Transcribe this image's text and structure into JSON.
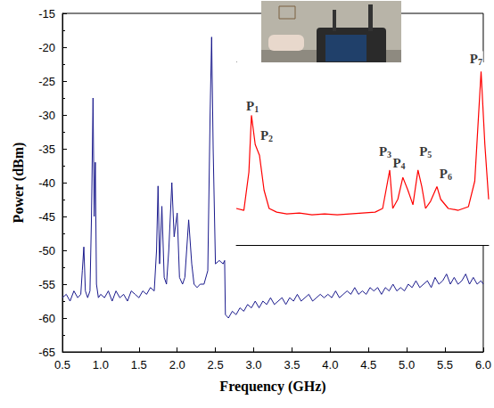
{
  "chart_data": [
    {
      "type": "line",
      "x_label": "Frequency (GHz)",
      "y_label": "Power (dBm)",
      "color": "#1a1a8c",
      "grid": false,
      "xlim": [
        0.5,
        6.0
      ],
      "ylim": [
        -65,
        -15
      ],
      "xticks": [
        0.5,
        {
          "value": 1,
          "label": "1.0"
        },
        1.5,
        {
          "value": 2,
          "label": "2.0"
        },
        2.5,
        {
          "value": 3,
          "label": "3.0"
        },
        3.5,
        {
          "value": 4,
          "label": "4.0"
        },
        4.5,
        {
          "value": 5,
          "label": "5.0"
        },
        5.5,
        {
          "value": 6,
          "label": "6.0"
        }
      ],
      "yticks": [
        -65,
        -60,
        -55,
        -50,
        -45,
        -40,
        -35,
        -30,
        -25,
        -20,
        -15
      ],
      "x": [
        0.5,
        0.55,
        0.6,
        0.65,
        0.7,
        0.74,
        0.76,
        0.78,
        0.8,
        0.83,
        0.86,
        0.88,
        0.9,
        0.915,
        0.93,
        0.945,
        0.97,
        1.0,
        1.05,
        1.1,
        1.15,
        1.2,
        1.25,
        1.3,
        1.35,
        1.4,
        1.45,
        1.5,
        1.55,
        1.6,
        1.65,
        1.7,
        1.73,
        1.75,
        1.77,
        1.8,
        1.83,
        1.86,
        1.89,
        1.93,
        1.96,
        2.0,
        2.03,
        2.07,
        2.1,
        2.15,
        2.19,
        2.22,
        2.26,
        2.3,
        2.35,
        2.4,
        2.43,
        2.45,
        2.47,
        2.5,
        2.55,
        2.6,
        2.62,
        2.63,
        2.67,
        2.72,
        2.77,
        2.82,
        2.87,
        2.92,
        2.97,
        3.02,
        3.07,
        3.12,
        3.17,
        3.22,
        3.27,
        3.32,
        3.37,
        3.42,
        3.47,
        3.52,
        3.57,
        3.62,
        3.67,
        3.72,
        3.77,
        3.82,
        3.87,
        3.92,
        3.97,
        4.02,
        4.07,
        4.12,
        4.17,
        4.22,
        4.27,
        4.32,
        4.37,
        4.42,
        4.47,
        4.52,
        4.57,
        4.62,
        4.67,
        4.72,
        4.77,
        4.82,
        4.87,
        4.92,
        4.97,
        5.02,
        5.07,
        5.12,
        5.17,
        5.22,
        5.27,
        5.32,
        5.37,
        5.42,
        5.47,
        5.52,
        5.57,
        5.62,
        5.67,
        5.72,
        5.77,
        5.82,
        5.87,
        5.92,
        5.97,
        6.0
      ],
      "values": [
        -57,
        -56.5,
        -57.5,
        -56,
        -57,
        -56.5,
        -53,
        -49.5,
        -56,
        -57,
        -56,
        -45,
        -27.5,
        -45,
        -37,
        -55,
        -57,
        -56.5,
        -57,
        -56,
        -57.5,
        -56,
        -57,
        -56.5,
        -57.5,
        -56,
        -56.5,
        -57,
        -56,
        -56.5,
        -55.5,
        -56,
        -50,
        -40.5,
        -52,
        -43.5,
        -54,
        -55,
        -50,
        -40,
        -48,
        -44.5,
        -54,
        -55,
        -54,
        -45.5,
        -52,
        -55,
        -55.5,
        -55,
        -55,
        -53,
        -30,
        -18.5,
        -35,
        -52,
        -51.5,
        -52,
        -51.5,
        -59.5,
        -60,
        -59,
        -59.5,
        -58.5,
        -59,
        -58,
        -58.5,
        -57.5,
        -58.5,
        -57.5,
        -58,
        -57,
        -58,
        -57.5,
        -57,
        -58,
        -57,
        -57.5,
        -56.5,
        -57.5,
        -57,
        -56.5,
        -57.5,
        -57,
        -56.5,
        -57,
        -56.5,
        -57,
        -56,
        -57,
        -56.5,
        -56,
        -56.5,
        -55.5,
        -56.5,
        -56,
        -56.5,
        -55.5,
        -56,
        -55.5,
        -56.5,
        -55.5,
        -56,
        -55,
        -56,
        -55.5,
        -56,
        -55,
        -55.5,
        -54.5,
        -55.5,
        -55,
        -54.5,
        -55.5,
        -54,
        -55,
        -54.5,
        -53.5,
        -55,
        -54,
        -55,
        -54.5,
        -53.5,
        -55,
        -54,
        -55,
        -54.5,
        -55
      ]
    },
    {
      "type": "line",
      "color": "#ff0000",
      "tick_labels": false,
      "xlim": [
        0,
        100
      ],
      "ylim": [
        0,
        100
      ],
      "x": [
        0,
        3,
        5,
        6,
        7.5,
        9.2,
        11,
        13,
        16,
        20,
        25,
        30,
        35,
        40,
        45,
        50,
        55,
        58,
        60.8,
        62,
        64,
        66,
        68,
        70,
        72,
        73.5,
        75,
        77,
        79.5,
        81,
        84,
        88,
        92,
        94.5,
        97,
        98.5,
        100
      ],
      "values": [
        20,
        19,
        40,
        71,
        55,
        49,
        30,
        20,
        18,
        17,
        17.5,
        16.5,
        17,
        16.5,
        17,
        17.5,
        18,
        20,
        41,
        20,
        25,
        37,
        30,
        22,
        41,
        32,
        20,
        24,
        32,
        25,
        20,
        19,
        21,
        35,
        95,
        55,
        25
      ],
      "annotations": [
        {
          "text": "P1",
          "x": 6.4,
          "y": 76
        },
        {
          "text": "P2",
          "x": 12,
          "y": 60
        },
        {
          "text": "P3",
          "x": 59,
          "y": 51
        },
        {
          "text": "P4",
          "x": 64.5,
          "y": 45
        },
        {
          "text": "P5",
          "x": 75,
          "y": 51
        },
        {
          "text": "P6",
          "x": 83,
          "y": 39
        },
        {
          "text": "P7",
          "x": 95,
          "y": 102
        }
      ]
    }
  ]
}
